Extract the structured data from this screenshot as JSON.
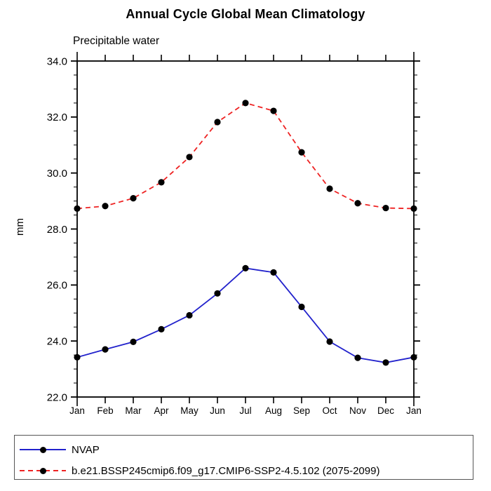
{
  "title": "Annual Cycle Global Mean Climatology",
  "subtitle": "Precipitable water",
  "ylabel": "mm",
  "chart_data": {
    "type": "line",
    "x_categories": [
      "Jan",
      "Feb",
      "Mar",
      "Apr",
      "May",
      "Jun",
      "Jul",
      "Aug",
      "Sep",
      "Oct",
      "Nov",
      "Dec",
      "Jan"
    ],
    "xlabel": "",
    "ylabel": "mm",
    "ylim": [
      22.0,
      34.0
    ],
    "ytick_step": 2.0,
    "ytick_minor_step": 0.5,
    "ytick_labels": [
      "22.0",
      "24.0",
      "26.0",
      "28.0",
      "30.0",
      "32.0",
      "34.0"
    ],
    "grid": false,
    "legend_position": "bottom",
    "marker": {
      "shape": "circle",
      "color": "#000000"
    },
    "axis_color": "#000000",
    "series": [
      {
        "name": "NVAP",
        "color": "#2222cc",
        "style": "solid",
        "values": [
          23.42,
          23.7,
          23.97,
          24.42,
          24.92,
          25.7,
          26.6,
          26.45,
          25.22,
          23.98,
          23.4,
          23.23,
          23.42
        ]
      },
      {
        "name": "b.e21.BSSP245cmip6.f09_g17.CMIP6-SSP2-4.5.102 (2075-2099)",
        "color": "#ee2222",
        "style": "dashed",
        "values": [
          28.73,
          28.82,
          29.1,
          29.67,
          30.57,
          31.82,
          32.5,
          32.22,
          30.74,
          29.44,
          28.92,
          28.75,
          28.73
        ]
      }
    ]
  }
}
